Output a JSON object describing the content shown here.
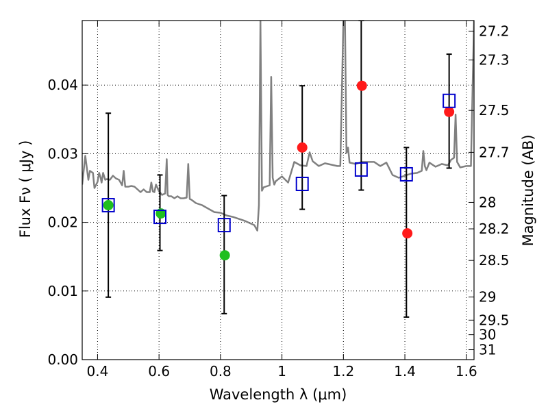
{
  "chart_data": {
    "type": "scatter",
    "xlabel": "Wavelength  λ (μm)",
    "ylabel": "Flux  Fν  ( μJy )",
    "y2label": "Magnitude (AB)",
    "xlim": [
      0.35,
      1.625
    ],
    "ylim": [
      0.0,
      0.0494
    ],
    "grid": true,
    "x_ticks": [
      "0.4",
      "0.6",
      "0.8",
      "1",
      "1.2",
      "1.4",
      "1.6"
    ],
    "x_tick_values": [
      0.4,
      0.6,
      0.8,
      1.0,
      1.2,
      1.4,
      1.6
    ],
    "y_ticks": [
      "0.00",
      "0.01",
      "0.02",
      "0.03",
      "0.04"
    ],
    "y_tick_values": [
      0.0,
      0.01,
      0.02,
      0.03,
      0.04
    ],
    "mag_ticks": [
      "27.2",
      "27.3",
      "27.5",
      "27.7",
      "28",
      "28.2",
      "28.5",
      "29",
      "29.5",
      "30",
      "31"
    ],
    "mag_tick_values": [
      27.2,
      27.3,
      27.5,
      27.7,
      28.0,
      28.2,
      28.5,
      29.0,
      29.5,
      30.0,
      31.0
    ],
    "series": [
      {
        "marker": "green-circle",
        "color": "#1fbf1f",
        "x": [
          0.435,
          0.606,
          0.814
        ],
        "y": [
          0.0225,
          0.0213,
          0.0152
        ]
      },
      {
        "marker": "red-circle",
        "color": "#ff1a1a",
        "x": [
          1.066,
          1.26,
          1.408,
          1.544
        ],
        "y": [
          0.0309,
          0.0399,
          0.0184,
          0.0361
        ]
      },
      {
        "marker": "blue-open-square",
        "color": "#0000cc",
        "x": [
          0.435,
          0.603,
          0.812,
          1.066,
          1.258,
          1.405,
          1.544
        ],
        "y": [
          0.0225,
          0.0208,
          0.0196,
          0.0256,
          0.0277,
          0.027,
          0.0377
        ],
        "err_low": [
          0.0091,
          0.0159,
          0.0067,
          0.0219,
          0.0247,
          0.0062,
          0.0279
        ],
        "err_high": [
          0.0359,
          0.0269,
          0.0239,
          0.0399,
          0.0494,
          0.0309,
          0.0445
        ]
      },
      {
        "marker": "gray-line",
        "color": "#808080",
        "x": [
          0.35,
          0.36,
          0.37,
          0.375,
          0.385,
          0.39,
          0.4,
          0.405,
          0.41,
          0.413,
          0.418,
          0.425,
          0.43,
          0.44,
          0.45,
          0.46,
          0.47,
          0.48,
          0.485,
          0.49,
          0.5,
          0.51,
          0.52,
          0.53,
          0.54,
          0.55,
          0.56,
          0.57,
          0.575,
          0.58,
          0.585,
          0.59,
          0.6,
          0.61,
          0.62,
          0.625,
          0.628,
          0.632,
          0.64,
          0.65,
          0.66,
          0.67,
          0.68,
          0.69,
          0.695,
          0.7,
          0.705,
          0.72,
          0.74,
          0.76,
          0.78,
          0.8,
          0.82,
          0.84,
          0.86,
          0.88,
          0.9,
          0.91,
          0.92,
          0.925,
          0.93,
          0.935,
          0.94,
          0.96,
          0.965,
          0.97,
          0.975,
          0.98,
          1.0,
          1.02,
          1.04,
          1.06,
          1.08,
          1.09,
          1.1,
          1.12,
          1.14,
          1.16,
          1.18,
          1.19,
          1.2,
          1.205,
          1.21,
          1.215,
          1.22,
          1.24,
          1.26,
          1.28,
          1.3,
          1.32,
          1.34,
          1.36,
          1.38,
          1.4,
          1.42,
          1.44,
          1.455,
          1.46,
          1.465,
          1.47,
          1.48,
          1.5,
          1.52,
          1.54,
          1.55,
          1.56,
          1.565,
          1.57,
          1.58,
          1.6,
          1.615,
          1.625
        ],
        "y": [
          0.0255,
          0.0297,
          0.0262,
          0.0275,
          0.0272,
          0.025,
          0.0259,
          0.0272,
          0.0265,
          0.0258,
          0.0272,
          0.0262,
          0.0263,
          0.0262,
          0.0268,
          0.0264,
          0.0262,
          0.0254,
          0.0275,
          0.0252,
          0.0252,
          0.0253,
          0.0252,
          0.0248,
          0.0244,
          0.0248,
          0.0244,
          0.0244,
          0.0258,
          0.0245,
          0.0244,
          0.0255,
          0.0245,
          0.024,
          0.0242,
          0.0292,
          0.024,
          0.0238,
          0.0238,
          0.0235,
          0.0238,
          0.0235,
          0.0235,
          0.0236,
          0.0285,
          0.0234,
          0.0233,
          0.0228,
          0.0225,
          0.022,
          0.0215,
          0.0214,
          0.021,
          0.0208,
          0.0205,
          0.0202,
          0.0198,
          0.0196,
          0.0188,
          0.0225,
          0.0494,
          0.0246,
          0.0251,
          0.0254,
          0.0412,
          0.0265,
          0.0255,
          0.026,
          0.0267,
          0.0258,
          0.0288,
          0.0283,
          0.0282,
          0.0302,
          0.0289,
          0.0282,
          0.0286,
          0.0284,
          0.0282,
          0.0282,
          0.0494,
          0.0494,
          0.0301,
          0.0309,
          0.0287,
          0.0285,
          0.0288,
          0.0288,
          0.0288,
          0.0282,
          0.0287,
          0.0269,
          0.0265,
          0.0268,
          0.0271,
          0.0272,
          0.0275,
          0.0304,
          0.0282,
          0.0276,
          0.0287,
          0.0281,
          0.0285,
          0.0283,
          0.0291,
          0.0294,
          0.0357,
          0.0288,
          0.028,
          0.0282,
          0.0282,
          0.0494
        ]
      }
    ]
  }
}
